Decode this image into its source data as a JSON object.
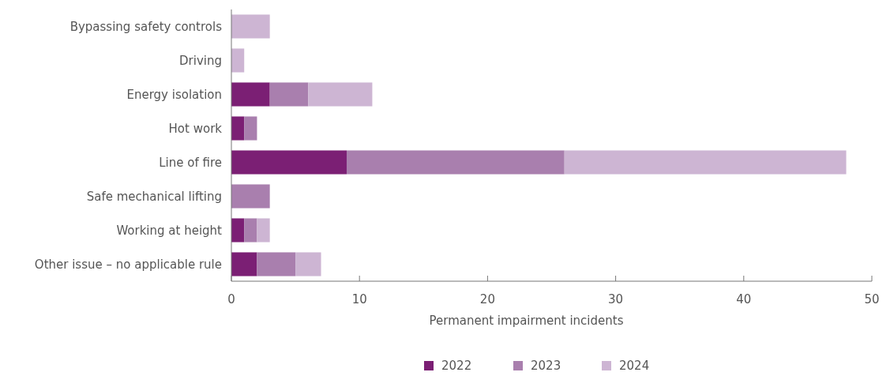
{
  "chart_data": {
    "type": "bar",
    "orientation": "horizontal",
    "stacked": true,
    "xlabel": "Permanent impairment incidents",
    "categories": [
      "Bypassing safety controls",
      "Driving",
      "Energy isolation",
      "Hot work",
      "Line of fire",
      "Safe mechanical lifting",
      "Working at height",
      "Other issue – no applicable rule"
    ],
    "series": [
      {
        "name": "2022",
        "color": "#7b1f74",
        "values": [
          0,
          0,
          3,
          1,
          9,
          0,
          1,
          2
        ]
      },
      {
        "name": "2023",
        "color": "#a97fae",
        "values": [
          0,
          0,
          3,
          1,
          17,
          3,
          1,
          3
        ]
      },
      {
        "name": "2024",
        "color": "#cdb5d3",
        "values": [
          3,
          1,
          5,
          0,
          22,
          0,
          1,
          2
        ]
      }
    ],
    "xlim": [
      0,
      50
    ],
    "xticks": [
      0,
      10,
      20,
      30,
      40,
      50
    ],
    "legend": "bottom",
    "grid": false
  }
}
